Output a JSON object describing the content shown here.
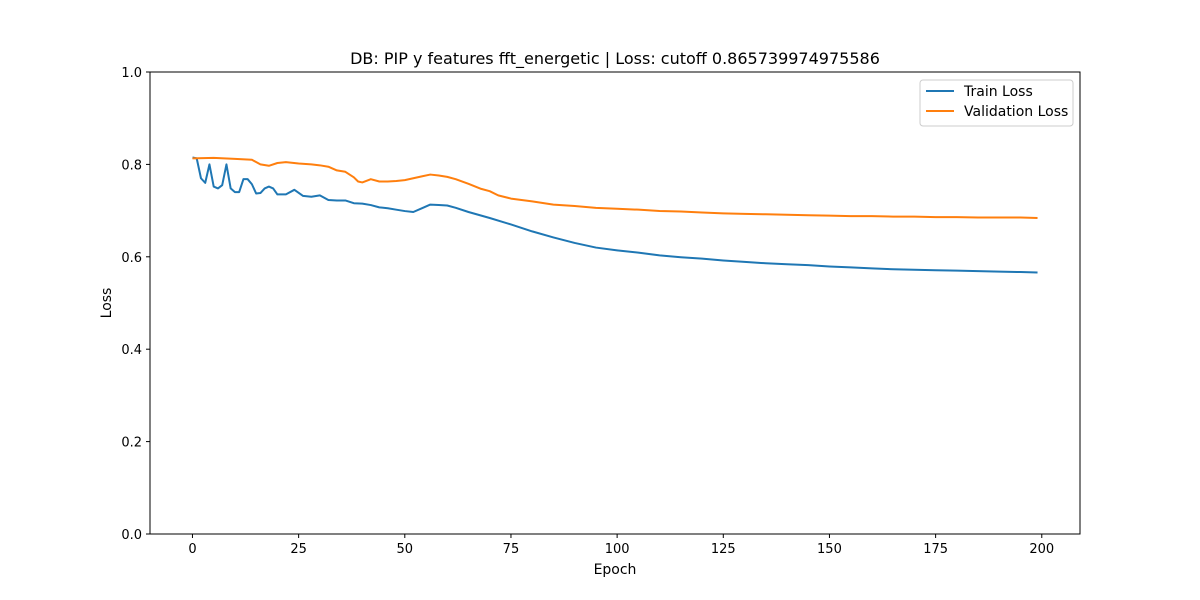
{
  "chart_data": {
    "type": "line",
    "title": "DB: PIP y features fft_energetic | Loss: cutoff 0.865739974975586",
    "xlabel": "Epoch",
    "ylabel": "Loss",
    "xlim": [
      -10,
      209
    ],
    "ylim": [
      0.0,
      1.0
    ],
    "xticks": [
      0,
      25,
      50,
      75,
      100,
      125,
      150,
      175,
      200
    ],
    "xtick_labels": [
      "0",
      "25",
      "50",
      "75",
      "100",
      "125",
      "150",
      "175",
      "200"
    ],
    "yticks": [
      0.0,
      0.2,
      0.4,
      0.6,
      0.8,
      1.0
    ],
    "ytick_labels": [
      "0.0",
      "0.2",
      "0.4",
      "0.6",
      "0.8",
      "1.0"
    ],
    "grid": false,
    "legend_position": "top-right",
    "series": [
      {
        "name": "Train Loss",
        "color": "#1f77b4",
        "x": [
          0,
          1,
          2,
          3,
          4,
          5,
          6,
          7,
          8,
          9,
          10,
          11,
          12,
          13,
          14,
          15,
          16,
          17,
          18,
          19,
          20,
          22,
          24,
          26,
          28,
          30,
          32,
          34,
          36,
          38,
          40,
          42,
          44,
          46,
          48,
          50,
          52,
          54,
          56,
          58,
          60,
          62,
          65,
          70,
          75,
          80,
          85,
          90,
          95,
          100,
          105,
          110,
          115,
          120,
          125,
          130,
          135,
          140,
          145,
          150,
          155,
          160,
          165,
          170,
          175,
          180,
          185,
          190,
          195,
          199
        ],
        "values": [
          0.815,
          0.813,
          0.77,
          0.76,
          0.8,
          0.752,
          0.748,
          0.755,
          0.8,
          0.748,
          0.74,
          0.74,
          0.768,
          0.768,
          0.757,
          0.737,
          0.738,
          0.748,
          0.752,
          0.748,
          0.735,
          0.735,
          0.745,
          0.732,
          0.73,
          0.733,
          0.723,
          0.722,
          0.722,
          0.716,
          0.715,
          0.712,
          0.707,
          0.705,
          0.702,
          0.699,
          0.697,
          0.705,
          0.713,
          0.712,
          0.711,
          0.706,
          0.697,
          0.684,
          0.67,
          0.655,
          0.642,
          0.63,
          0.62,
          0.614,
          0.609,
          0.603,
          0.599,
          0.596,
          0.592,
          0.589,
          0.586,
          0.584,
          0.582,
          0.579,
          0.577,
          0.575,
          0.573,
          0.572,
          0.571,
          0.57,
          0.569,
          0.568,
          0.567,
          0.566
        ]
      },
      {
        "name": "Validation Loss",
        "color": "#ff7f0e",
        "x": [
          0,
          5,
          10,
          14,
          16,
          18,
          20,
          22,
          25,
          28,
          30,
          32,
          34,
          36,
          38,
          39,
          40,
          42,
          44,
          46,
          48,
          50,
          52,
          54,
          56,
          58,
          60,
          62,
          65,
          68,
          70,
          72,
          75,
          80,
          85,
          90,
          95,
          100,
          105,
          110,
          115,
          120,
          125,
          130,
          135,
          140,
          145,
          150,
          155,
          160,
          165,
          170,
          175,
          180,
          185,
          190,
          195,
          199
        ],
        "values": [
          0.813,
          0.814,
          0.812,
          0.81,
          0.8,
          0.797,
          0.803,
          0.805,
          0.802,
          0.8,
          0.798,
          0.795,
          0.787,
          0.784,
          0.772,
          0.763,
          0.761,
          0.768,
          0.763,
          0.763,
          0.764,
          0.766,
          0.77,
          0.774,
          0.778,
          0.776,
          0.773,
          0.768,
          0.758,
          0.747,
          0.742,
          0.733,
          0.726,
          0.72,
          0.713,
          0.71,
          0.706,
          0.704,
          0.702,
          0.699,
          0.698,
          0.696,
          0.694,
          0.693,
          0.692,
          0.691,
          0.69,
          0.689,
          0.688,
          0.688,
          0.687,
          0.687,
          0.686,
          0.686,
          0.685,
          0.685,
          0.685,
          0.684
        ]
      }
    ]
  }
}
